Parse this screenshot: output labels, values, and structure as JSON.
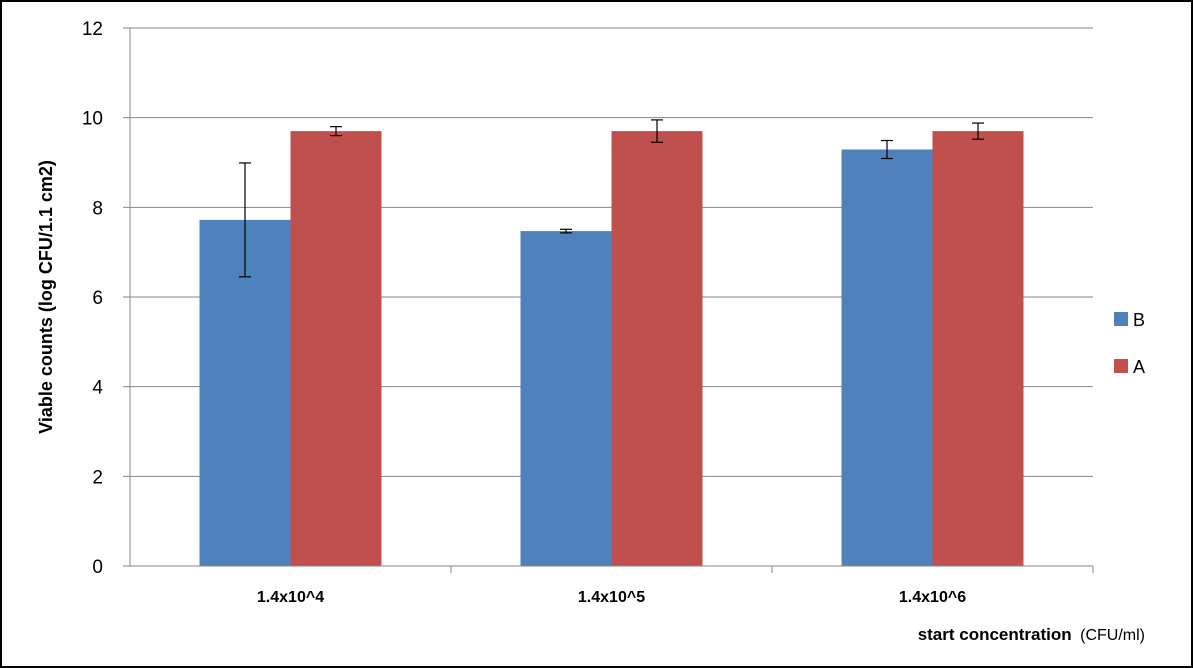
{
  "chart_data": {
    "type": "bar",
    "categories": [
      "1.4x10^4",
      "1.4x10^5",
      "1.4x10^6"
    ],
    "series": [
      {
        "name": "B",
        "color": "#4F81BD",
        "values": [
          7.72,
          7.47,
          9.29
        ],
        "errors": [
          1.27,
          0.04,
          0.2
        ]
      },
      {
        "name": "A",
        "color": "#C0504D",
        "values": [
          9.7,
          9.7,
          9.7
        ],
        "errors": [
          0.1,
          0.25,
          0.18
        ]
      }
    ],
    "ylim": [
      0,
      12
    ],
    "yticks": [
      0,
      2,
      4,
      6,
      8,
      10,
      12
    ],
    "ylabel": "Viable counts (log CFU/1.1 cm2)",
    "xlabel": "start concentration",
    "xlabel_unit": "(CFU/ml)",
    "grid": true,
    "legend": "right"
  }
}
